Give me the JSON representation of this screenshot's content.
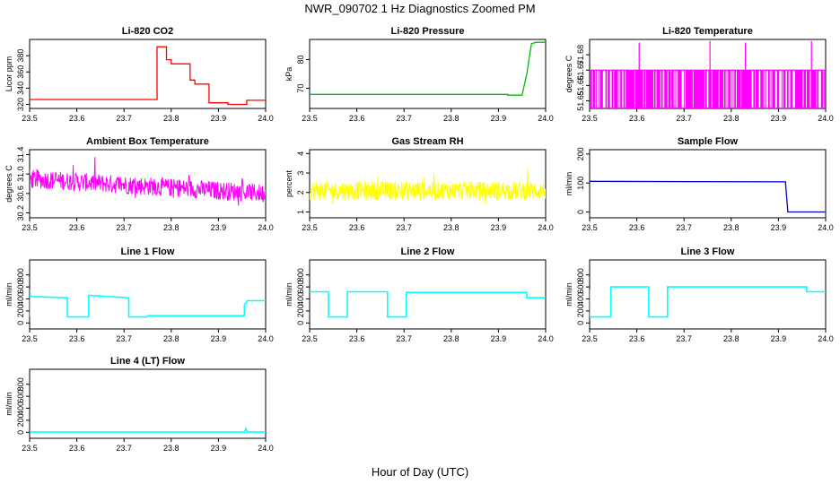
{
  "figure": {
    "title": "NWR_090702  1 Hz Diagnostics Zoomed PM",
    "xlabel": "Hour of Day (UTC)"
  },
  "chart_data": [
    {
      "type": "line",
      "title": "Li-820 CO2",
      "ylabel": "Licor ppm",
      "color": "#ff0000",
      "xlim": [
        23.5,
        24.0
      ],
      "xticks": [
        23.5,
        23.6,
        23.7,
        23.8,
        23.9,
        24.0
      ],
      "ylim": [
        315,
        400
      ],
      "yticks": [
        320,
        340,
        360,
        380
      ],
      "series": [
        {
          "x": [
            23.5,
            23.77,
            23.77,
            23.79,
            23.79,
            23.8,
            23.8,
            23.84,
            23.84,
            23.85,
            23.85,
            23.88,
            23.88,
            23.92,
            23.92,
            23.96,
            23.96,
            24.0
          ],
          "y": [
            326,
            326,
            391,
            391,
            375,
            375,
            370,
            370,
            350,
            350,
            345,
            345,
            322,
            322,
            320,
            320,
            325,
            325
          ]
        }
      ]
    },
    {
      "type": "line",
      "title": "Li-820 Pressure",
      "ylabel": "kPa",
      "color": "#00bb00",
      "xlim": [
        23.5,
        24.0
      ],
      "xticks": [
        23.5,
        23.6,
        23.7,
        23.8,
        23.9,
        24.0
      ],
      "ylim": [
        63,
        87
      ],
      "yticks": [
        70,
        80
      ],
      "series": [
        {
          "x": [
            23.5,
            23.92,
            23.92,
            23.95,
            23.96,
            23.97,
            23.98,
            24.0
          ],
          "y": [
            67.9,
            67.9,
            67.6,
            67.6,
            75,
            85.5,
            86,
            86
          ]
        }
      ]
    },
    {
      "type": "line",
      "title": "Li-820 Temperature",
      "ylabel": "degrees C",
      "color": "#ff00ff",
      "xlim": [
        23.5,
        24.0
      ],
      "xticks": [
        23.5,
        23.6,
        23.7,
        23.8,
        23.9,
        24.0
      ],
      "ylim": [
        51.645,
        51.69
      ],
      "yticks": [
        51.65,
        51.66,
        51.67,
        51.68
      ],
      "series": [
        {
          "baseline": 51.67,
          "dips_to": 51.645,
          "spikes": [
            {
              "x": 23.605,
              "y": 51.688
            },
            {
              "x": 23.755,
              "y": 51.689
            },
            {
              "x": 23.83,
              "y": 51.688
            },
            {
              "x": 23.97,
              "y": 51.689
            }
          ]
        }
      ]
    },
    {
      "type": "line",
      "title": "Ambient Box Temperature",
      "ylabel": "degrees C",
      "color": "#ff00ff",
      "xlim": [
        23.5,
        24.0
      ],
      "xticks": [
        23.5,
        23.6,
        23.7,
        23.8,
        23.9,
        24.0
      ],
      "ylim": [
        30.1,
        31.5
      ],
      "yticks": [
        30.2,
        30.6,
        31.0,
        31.4
      ],
      "series": [
        {
          "start_level": 30.9,
          "end_level": 30.6,
          "noise": 0.12,
          "min": 30.15,
          "max": 31.35
        }
      ]
    },
    {
      "type": "line",
      "title": "Gas Stream RH",
      "ylabel": "percent",
      "color": "#ffff00",
      "xlim": [
        23.5,
        24.0
      ],
      "xticks": [
        23.5,
        23.6,
        23.7,
        23.8,
        23.9,
        24.0
      ],
      "ylim": [
        0.7,
        4.2
      ],
      "yticks": [
        1.0,
        2.0,
        3.0,
        4.0
      ],
      "series": [
        {
          "level": 2.1,
          "noise": 0.3,
          "min": 0.9,
          "max": 4.0
        }
      ]
    },
    {
      "type": "line",
      "title": "Sample Flow",
      "ylabel": "ml/min",
      "color": "#0000cc",
      "xlim": [
        23.5,
        24.0
      ],
      "xticks": [
        23.5,
        23.6,
        23.7,
        23.8,
        23.9,
        24.0
      ],
      "ylim": [
        -20,
        215
      ],
      "yticks": [
        0,
        100,
        200
      ],
      "series": [
        {
          "x": [
            23.5,
            23.915,
            23.915,
            23.92,
            24.0
          ],
          "y": [
            106,
            104,
            100,
            0,
            0
          ]
        }
      ]
    },
    {
      "type": "line",
      "title": "Line 1 Flow",
      "ylabel": "ml/min",
      "color": "#00ffff",
      "xlim": [
        23.5,
        24.0
      ],
      "xticks": [
        23.5,
        23.6,
        23.7,
        23.8,
        23.9,
        24.0
      ],
      "ylim": [
        -100,
        1050
      ],
      "yticks": [
        0,
        200,
        400,
        600,
        800
      ],
      "series": [
        {
          "x": [
            23.5,
            23.5,
            23.502,
            23.58,
            23.58,
            23.625,
            23.625,
            23.71,
            23.71,
            23.75,
            23.75,
            23.955,
            23.955,
            23.96,
            23.96,
            24.0
          ],
          "y": [
            100,
            550,
            440,
            420,
            100,
            100,
            460,
            420,
            100,
            100,
            120,
            120,
            300,
            350,
            370,
            370
          ]
        }
      ]
    },
    {
      "type": "line",
      "title": "Line 2 Flow",
      "ylabel": "ml/min",
      "color": "#00ffff",
      "xlim": [
        23.5,
        24.0
      ],
      "xticks": [
        23.5,
        23.6,
        23.7,
        23.8,
        23.9,
        24.0
      ],
      "ylim": [
        -100,
        1050
      ],
      "yticks": [
        0,
        200,
        400,
        600,
        800
      ],
      "series": [
        {
          "x": [
            23.5,
            23.54,
            23.54,
            23.58,
            23.58,
            23.665,
            23.665,
            23.705,
            23.705,
            23.96,
            23.96,
            24.0
          ],
          "y": [
            520,
            520,
            100,
            100,
            520,
            520,
            100,
            100,
            510,
            510,
            420,
            420
          ]
        }
      ]
    },
    {
      "type": "line",
      "title": "Line 3 Flow",
      "ylabel": "ml/min",
      "color": "#00ffff",
      "xlim": [
        23.5,
        24.0
      ],
      "xticks": [
        23.5,
        23.6,
        23.7,
        23.8,
        23.9,
        24.0
      ],
      "ylim": [
        -100,
        1050
      ],
      "yticks": [
        0,
        200,
        400,
        600,
        800
      ],
      "series": [
        {
          "x": [
            23.5,
            23.5,
            23.505,
            23.545,
            23.545,
            23.625,
            23.625,
            23.665,
            23.665,
            23.96,
            23.96,
            24.0
          ],
          "y": [
            550,
            100,
            100,
            100,
            600,
            600,
            100,
            100,
            600,
            600,
            520,
            520
          ]
        }
      ]
    },
    {
      "type": "line",
      "title": "Line 4 (LT) Flow",
      "ylabel": "ml/min",
      "color": "#00ffff",
      "xlim": [
        23.5,
        24.0
      ],
      "xticks": [
        23.5,
        23.6,
        23.7,
        23.8,
        23.9,
        24.0
      ],
      "ylim": [
        -100,
        1050
      ],
      "yticks": [
        0,
        200,
        400,
        600,
        800
      ],
      "series": [
        {
          "x": [
            23.5,
            23.955,
            23.958,
            23.961,
            24.0
          ],
          "y": [
            3,
            3,
            60,
            3,
            3
          ]
        }
      ]
    }
  ]
}
